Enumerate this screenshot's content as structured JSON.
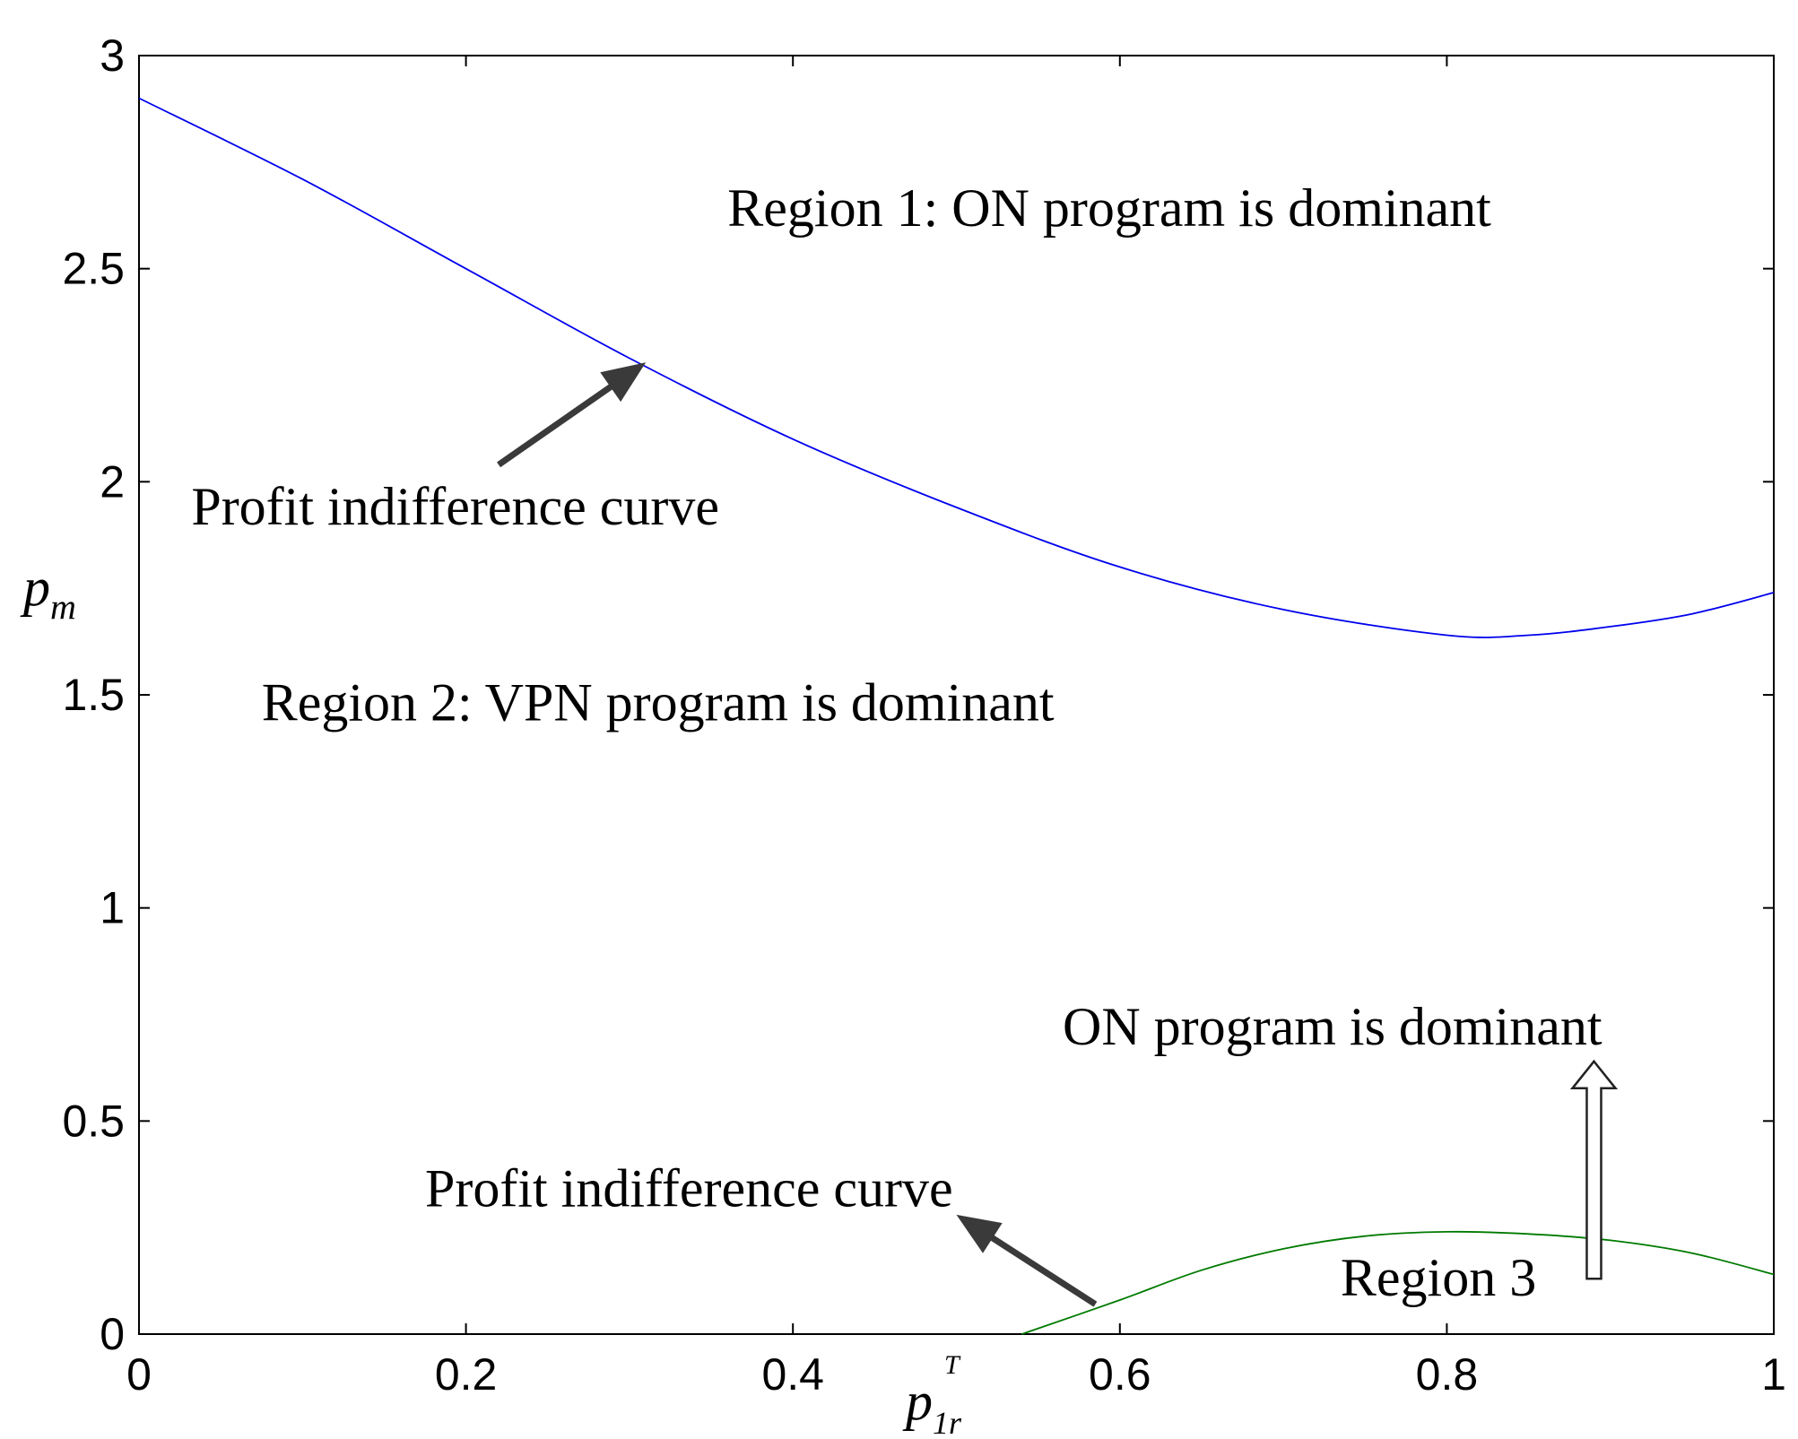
{
  "chart_data": {
    "type": "line",
    "xlabel": {
      "base": "p",
      "subscript": "1r",
      "superscript": "T"
    },
    "ylabel": {
      "base": "p",
      "subscript": "m"
    },
    "xlim": [
      0,
      1
    ],
    "ylim": [
      0,
      3
    ],
    "x_ticks": [
      "0",
      "0.2",
      "0.4",
      "0.6",
      "0.8",
      "1"
    ],
    "y_ticks": [
      "0",
      "0.5",
      "1",
      "1.5",
      "2",
      "2.5",
      "3"
    ],
    "grid": false,
    "series": [
      {
        "name": "Profit indifference curve (upper)",
        "color": "#0000ee",
        "x": [
          0,
          0.1,
          0.2,
          0.3,
          0.4,
          0.5,
          0.6,
          0.7,
          0.8,
          0.85,
          0.9,
          0.95,
          1.0
        ],
        "y": [
          2.9,
          2.71,
          2.5,
          2.29,
          2.1,
          1.94,
          1.8,
          1.7,
          1.64,
          1.64,
          1.66,
          1.69,
          1.74
        ]
      },
      {
        "name": "Profit indifference curve (lower)",
        "color": "#007a00",
        "x": [
          0.54,
          0.6,
          0.65,
          0.7,
          0.75,
          0.8,
          0.85,
          0.9,
          0.95,
          1.0
        ],
        "y": [
          0.0,
          0.08,
          0.15,
          0.2,
          0.23,
          0.24,
          0.235,
          0.22,
          0.19,
          0.14
        ]
      }
    ],
    "annotations": [
      {
        "id": "region1",
        "text": "Region 1: ON program is dominant",
        "x": 0.36,
        "y": 2.6
      },
      {
        "id": "region2",
        "text": "Region 2: VPN program is dominant",
        "x": 0.075,
        "y": 1.44
      },
      {
        "id": "curve-upper",
        "text": "Profit indifference curve",
        "x": 0.032,
        "y": 1.9
      },
      {
        "id": "on-dominant",
        "text": "ON program is dominant",
        "x": 0.565,
        "y": 0.68
      },
      {
        "id": "curve-lower",
        "text": "Profit indifference curve",
        "x": 0.175,
        "y": 0.3
      },
      {
        "id": "region3",
        "text": "Region 3",
        "x": 0.735,
        "y": 0.09
      }
    ],
    "arrows": [
      {
        "id": "arrow-upper",
        "style": "solid",
        "from": [
          0.22,
          2.04
        ],
        "to": [
          0.31,
          2.28
        ]
      },
      {
        "id": "arrow-lower",
        "style": "solid",
        "from": [
          0.585,
          0.07
        ],
        "to": [
          0.5,
          0.28
        ]
      },
      {
        "id": "arrow-region3",
        "style": "hollow",
        "from": [
          0.89,
          0.13
        ],
        "to": [
          0.89,
          0.64
        ]
      }
    ]
  }
}
